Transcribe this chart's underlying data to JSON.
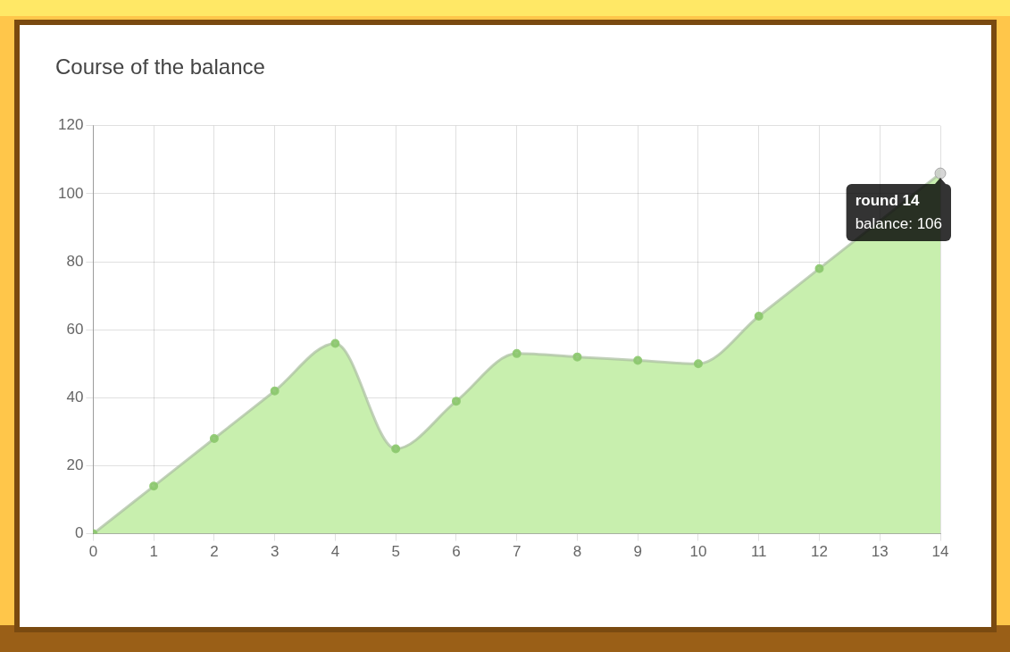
{
  "chart_data": {
    "type": "area",
    "title": "Course of the balance",
    "x": [
      0,
      1,
      2,
      3,
      4,
      5,
      6,
      7,
      8,
      9,
      10,
      11,
      12,
      13,
      14
    ],
    "series": [
      {
        "color": "#c8efae",
        "values": [
          0,
          14,
          28,
          42,
          56,
          25,
          39,
          53,
          52,
          51,
          50,
          64,
          78,
          null,
          106
        ]
      }
    ],
    "xlim": [
      0,
      14
    ],
    "xticks": [
      0,
      1,
      2,
      3,
      4,
      5,
      6,
      7,
      8,
      9,
      10,
      11,
      12,
      13,
      14
    ],
    "ylim": [
      0,
      120
    ],
    "yticks": [
      0,
      20,
      40,
      60,
      80,
      100,
      120
    ],
    "grid": true,
    "legend": false,
    "marker": "circle",
    "line_style": "solid",
    "annotations": [
      {
        "text": "round 14",
        "x": 14,
        "y": 106
      },
      {
        "text": "balance: 106",
        "x": 14,
        "y": 106
      }
    ]
  }
}
